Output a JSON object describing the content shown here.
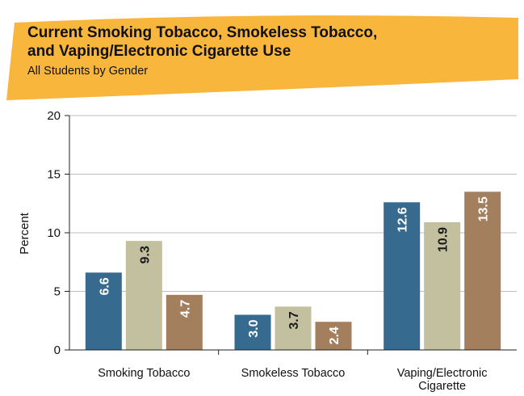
{
  "chart_data": {
    "type": "bar",
    "title_line1": "Current Smoking Tobacco, Smokeless Tobacco,",
    "title_line2": "and Vaping/Electronic Cigarette Use",
    "subtitle": "All Students by Gender",
    "ylabel": "Percent",
    "xlabel": "",
    "ylim": [
      0,
      20
    ],
    "yticks": [
      0,
      5,
      10,
      15,
      20
    ],
    "categories": [
      {
        "lines": [
          "Smoking Tobacco"
        ]
      },
      {
        "lines": [
          "Smokeless Tobacco"
        ]
      },
      {
        "lines": [
          "Vaping/Electronic",
          "Cigarette"
        ]
      }
    ],
    "series": [
      {
        "color": "#366a8f",
        "label_color": "#ffffff",
        "values": [
          6.6,
          3.0,
          12.6
        ],
        "labels": [
          "6.6",
          "3.0",
          "12.6"
        ]
      },
      {
        "color": "#c3c0a0",
        "label_color": "#1a1a1a",
        "values": [
          9.3,
          3.7,
          10.9
        ],
        "labels": [
          "9.3",
          "3.7",
          "10.9"
        ]
      },
      {
        "color": "#a37f5e",
        "label_color": "#ffffff",
        "values": [
          4.7,
          2.4,
          13.5
        ],
        "labels": [
          "4.7",
          "2.4",
          "13.5"
        ]
      }
    ],
    "grid": true,
    "legend": "none",
    "banner_color": "#f8b63d"
  }
}
